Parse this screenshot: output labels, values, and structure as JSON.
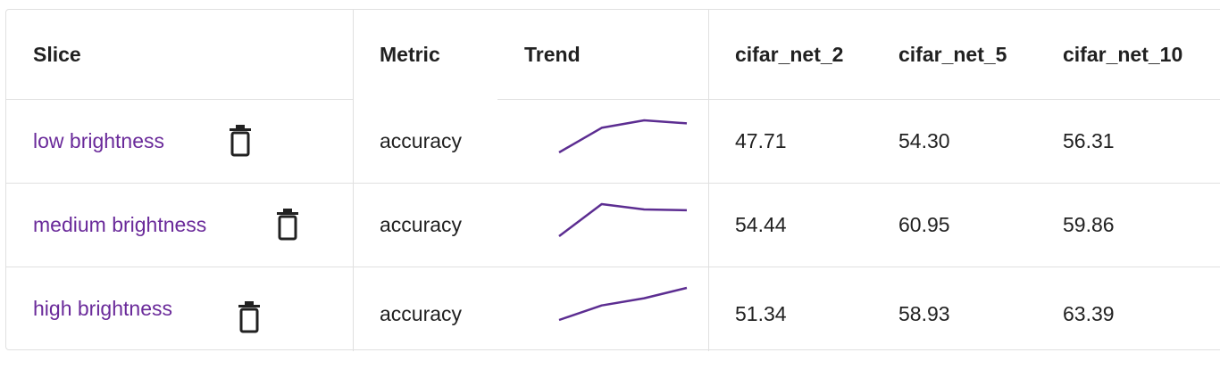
{
  "table": {
    "headers": {
      "slice": "Slice",
      "metric": "Metric",
      "trend": "Trend",
      "models": [
        "cifar_net_2",
        "cifar_net_5",
        "cifar_net_10"
      ]
    },
    "rows": [
      {
        "slice": "low brightness",
        "metric": "accuracy",
        "values": [
          "47.71",
          "54.30",
          "56.31"
        ],
        "trend": [
          47.71,
          54.3,
          56.31,
          55.5
        ]
      },
      {
        "slice": "medium brightness",
        "metric": "accuracy",
        "values": [
          "54.44",
          "60.95",
          "59.86"
        ],
        "trend": [
          54.44,
          60.95,
          59.86,
          59.7
        ]
      },
      {
        "slice": "high brightness",
        "metric": "accuracy",
        "values": [
          "51.34",
          "58.93",
          "63.39"
        ],
        "trend": [
          51.34,
          56.8,
          59.5,
          63.39
        ]
      }
    ]
  },
  "colors": {
    "accent": "#6a2a9a",
    "trend_line": "#5c2d91",
    "divider": "#e0e0e0",
    "icon": "#212121"
  },
  "icons": {
    "delete": "trash-icon"
  }
}
